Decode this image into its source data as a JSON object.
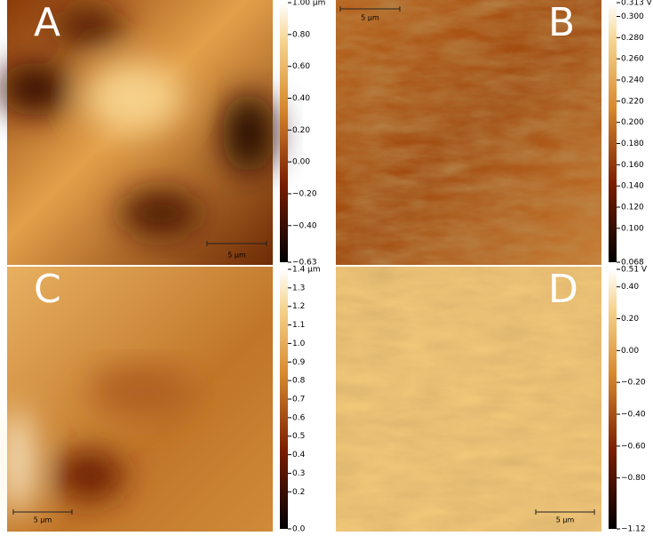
{
  "panels": [
    {
      "label": "A",
      "scale_bar": "5 µm",
      "colorbar": {
        "ticks": [
          {
            "value": 1.0,
            "label": "1.00 µm"
          },
          {
            "value": 0.8,
            "label": "0.80"
          },
          {
            "value": 0.6,
            "label": "0.60"
          },
          {
            "value": 0.4,
            "label": "0.40"
          },
          {
            "value": 0.2,
            "label": "0.20"
          },
          {
            "value": 0,
            "label": "0.00"
          },
          {
            "value": -0.2,
            "label": "−0.20"
          },
          {
            "value": -0.4,
            "label": "−0.40"
          },
          {
            "value": -0.63,
            "label": "−0.63"
          }
        ]
      }
    },
    {
      "label": "B",
      "scale_bar": "5 µm",
      "colorbar": {
        "ticks": [
          {
            "value": 0.313,
            "label": "0.313 V"
          },
          {
            "value": 0.3,
            "label": "0.300"
          },
          {
            "value": 0.28,
            "label": "0.280"
          },
          {
            "value": 0.26,
            "label": "0.260"
          },
          {
            "value": 0.24,
            "label": "0.240"
          },
          {
            "value": 0.22,
            "label": "0.220"
          },
          {
            "value": 0.2,
            "label": "0.200"
          },
          {
            "value": 0.18,
            "label": "0.180"
          },
          {
            "value": 0.16,
            "label": "0.160"
          },
          {
            "value": 0.14,
            "label": "0.140"
          },
          {
            "value": 0.12,
            "label": "0.120"
          },
          {
            "value": 0.1,
            "label": "0.100"
          },
          {
            "value": 0.068,
            "label": "0.068"
          }
        ]
      }
    },
    {
      "label": "C",
      "scale_bar": "5 µm",
      "colorbar": {
        "ticks": [
          {
            "value": 1.4,
            "label": "1.4 µm"
          },
          {
            "value": 1.3,
            "label": "1.3"
          },
          {
            "value": 1.2,
            "label": "1.2"
          },
          {
            "value": 1.1,
            "label": "1.1"
          },
          {
            "value": 1.0,
            "label": "1.0"
          },
          {
            "value": 0.9,
            "label": "0.9"
          },
          {
            "value": 0.8,
            "label": "0.8"
          },
          {
            "value": 0.7,
            "label": "0.7"
          },
          {
            "value": 0.6,
            "label": "0.6"
          },
          {
            "value": 0.5,
            "label": "0.5"
          },
          {
            "value": 0.4,
            "label": "0.4"
          },
          {
            "value": 0.3,
            "label": "0.3"
          },
          {
            "value": 0.2,
            "label": "0.2"
          },
          {
            "value": 0,
            "label": "0.0"
          }
        ]
      }
    },
    {
      "label": "D",
      "scale_bar": "5 µm",
      "colorbar": {
        "ticks": [
          {
            "value": 0.51,
            "label": "0.51 V"
          },
          {
            "value": 0.4,
            "label": "0.40"
          },
          {
            "value": 0.2,
            "label": "0.20"
          },
          {
            "value": 0,
            "label": "0.00"
          },
          {
            "value": -0.2,
            "label": "−0.20"
          },
          {
            "value": -0.4,
            "label": "−0.40"
          },
          {
            "value": -0.6,
            "label": "−0.60"
          },
          {
            "value": -0.8,
            "label": "−0.80"
          },
          {
            "value": -1.12,
            "label": "−1.12"
          }
        ]
      }
    }
  ]
}
